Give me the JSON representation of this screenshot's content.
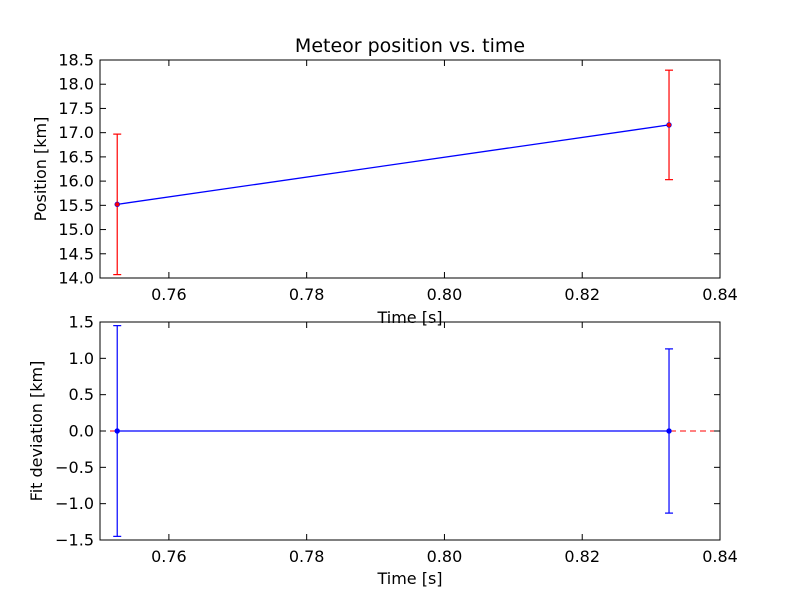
{
  "chart_data": [
    {
      "type": "line",
      "title": "Meteor position vs. time",
      "xlabel": "Time [s]",
      "ylabel": "Position [km]",
      "xlim": [
        0.75,
        0.84
      ],
      "ylim": [
        14.0,
        18.5
      ],
      "xticks": [
        "0.76",
        "0.78",
        "0.80",
        "0.82",
        "0.84"
      ],
      "yticks": [
        "14.0",
        "14.5",
        "15.0",
        "15.5",
        "16.0",
        "16.5",
        "17.0",
        "17.5",
        "18.0",
        "18.5"
      ],
      "grid": false,
      "series": [
        {
          "x": [
            0.7525,
            0.8326
          ],
          "y": [
            15.52,
            17.16
          ],
          "yerr": [
            1.45,
            1.13
          ],
          "color": "#0000ff",
          "errorbar_color": "#ff0000",
          "marker_color": "#ff0000"
        }
      ]
    },
    {
      "type": "line",
      "title": "",
      "xlabel": "Time [s]",
      "ylabel": "Fit deviation [km]",
      "xlim": [
        0.75,
        0.84
      ],
      "ylim": [
        -1.5,
        1.5
      ],
      "xticks": [
        "0.76",
        "0.78",
        "0.80",
        "0.82",
        "0.84"
      ],
      "yticks": [
        "−1.5",
        "−1.0",
        "−0.5",
        "0.0",
        "0.5",
        "1.0",
        "1.5"
      ],
      "grid": false,
      "zero_line_color": "#ff0000",
      "series": [
        {
          "x": [
            0.7525,
            0.8326
          ],
          "y": [
            0.0,
            0.0
          ],
          "yerr": [
            1.45,
            1.13
          ],
          "color": "#0000ff",
          "errorbar_color": "#0000ff",
          "marker_color": "#0000ff"
        }
      ]
    }
  ]
}
